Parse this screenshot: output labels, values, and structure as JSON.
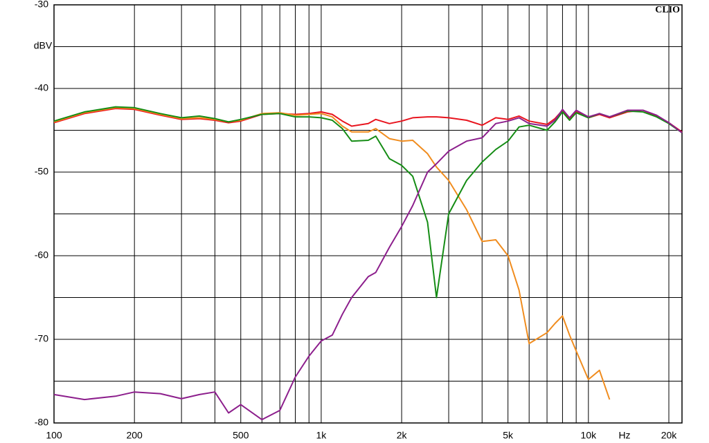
{
  "chart_data": {
    "type": "line",
    "brand": "CLIO",
    "y_unit": "dBV",
    "x_unit": "Hz",
    "log_x": true,
    "grid": true,
    "xlim": [
      100,
      22400
    ],
    "ylim": [
      -80,
      -30
    ],
    "yticks": [
      -30,
      -40,
      -50,
      -60,
      -70,
      -80
    ],
    "minor_yticks": [
      -35,
      -45,
      -55,
      -65,
      -75
    ],
    "xticks": [
      {
        "value": 100,
        "label": "100"
      },
      {
        "value": 200,
        "label": "200"
      },
      {
        "value": 500,
        "label": "500"
      },
      {
        "value": 1000,
        "label": "1k"
      },
      {
        "value": 2000,
        "label": "2k"
      },
      {
        "value": 5000,
        "label": "5k"
      },
      {
        "value": 10000,
        "label": "10k"
      },
      {
        "value": 20000,
        "label": "20k"
      }
    ],
    "minor_xticks": [
      300,
      400,
      600,
      700,
      800,
      900,
      3000,
      4000,
      6000,
      7000,
      8000,
      9000
    ],
    "x": [
      100,
      130,
      170,
      200,
      250,
      300,
      350,
      400,
      450,
      500,
      600,
      700,
      800,
      900,
      1000,
      1100,
      1200,
      1300,
      1500,
      1600,
      1800,
      2000,
      2200,
      2500,
      2700,
      3000,
      3500,
      4000,
      4500,
      5000,
      5500,
      6000,
      7000,
      7500,
      8000,
      8500,
      9000,
      10000,
      11000,
      12000,
      14000,
      16000,
      18000,
      20000,
      22400
    ],
    "series": [
      {
        "name": "red",
        "color": "#e8141e",
        "values": [
          -44.1,
          -43.0,
          -42.4,
          -42.5,
          -43.2,
          -43.7,
          -43.6,
          -43.8,
          -44.1,
          -43.9,
          -43.1,
          -43.0,
          -43.1,
          -43.0,
          -42.8,
          -43.1,
          -43.9,
          -44.5,
          -44.2,
          -43.7,
          -44.2,
          -43.9,
          -43.5,
          -43.4,
          -43.4,
          -43.5,
          -43.8,
          -44.4,
          -43.5,
          -43.7,
          -43.3,
          -43.9,
          -44.3,
          -43.6,
          -42.6,
          -43.7,
          -42.8,
          -43.5,
          -43.1,
          -43.5,
          -42.8,
          -42.6,
          -43.3,
          -44.1,
          -45.2
        ]
      },
      {
        "name": "orange",
        "color": "#f08c1e",
        "values": [
          -44.0,
          -42.9,
          -42.3,
          -42.4,
          -43.1,
          -43.6,
          -43.5,
          -43.7,
          -44.0,
          -43.8,
          -43.0,
          -42.9,
          -43.2,
          -43.1,
          -43.0,
          -43.4,
          -44.5,
          -45.2,
          -45.2,
          -44.8,
          -46.0,
          -46.3,
          -46.2,
          -47.8,
          -49.4,
          -51.0,
          -54.5,
          -58.3,
          -58.1,
          -60.0,
          -64.1,
          -70.5,
          -69.2,
          -68.1,
          -67.2,
          -69.5,
          -71.4,
          -74.8,
          -73.7,
          -77.2,
          null,
          null,
          null,
          null,
          null
        ]
      },
      {
        "name": "green",
        "color": "#148c14",
        "values": [
          -43.9,
          -42.8,
          -42.2,
          -42.3,
          -43.0,
          -43.5,
          -43.3,
          -43.6,
          -44.0,
          -43.7,
          -43.1,
          -43.0,
          -43.4,
          -43.4,
          -43.5,
          -43.8,
          -44.8,
          -46.3,
          -46.2,
          -45.7,
          -48.4,
          -49.2,
          -50.5,
          -56.0,
          -65.0,
          -55.0,
          -51.0,
          -48.8,
          -47.3,
          -46.3,
          -44.6,
          -44.4,
          -45.0,
          -44.0,
          -42.8,
          -43.8,
          -42.9,
          -43.5,
          -43.0,
          -43.4,
          -42.7,
          -42.8,
          -43.4,
          -44.2,
          -45.3
        ]
      },
      {
        "name": "purple",
        "color": "#8c1e8c",
        "values": [
          -76.6,
          -77.2,
          -76.8,
          -76.3,
          -76.5,
          -77.1,
          -76.6,
          -76.3,
          -78.8,
          -77.8,
          -79.6,
          -78.5,
          -74.5,
          -72.0,
          -70.2,
          -69.5,
          -67.0,
          -65.0,
          -62.5,
          -62.0,
          -59.0,
          -56.5,
          -54.0,
          -50.0,
          -49.0,
          -47.5,
          -46.3,
          -45.9,
          -44.2,
          -43.9,
          -43.5,
          -44.2,
          -44.5,
          -43.8,
          -42.5,
          -43.5,
          -42.6,
          -43.4,
          -43.0,
          -43.4,
          -42.6,
          -42.6,
          -43.2,
          -44.1,
          -45.3
        ]
      }
    ]
  }
}
